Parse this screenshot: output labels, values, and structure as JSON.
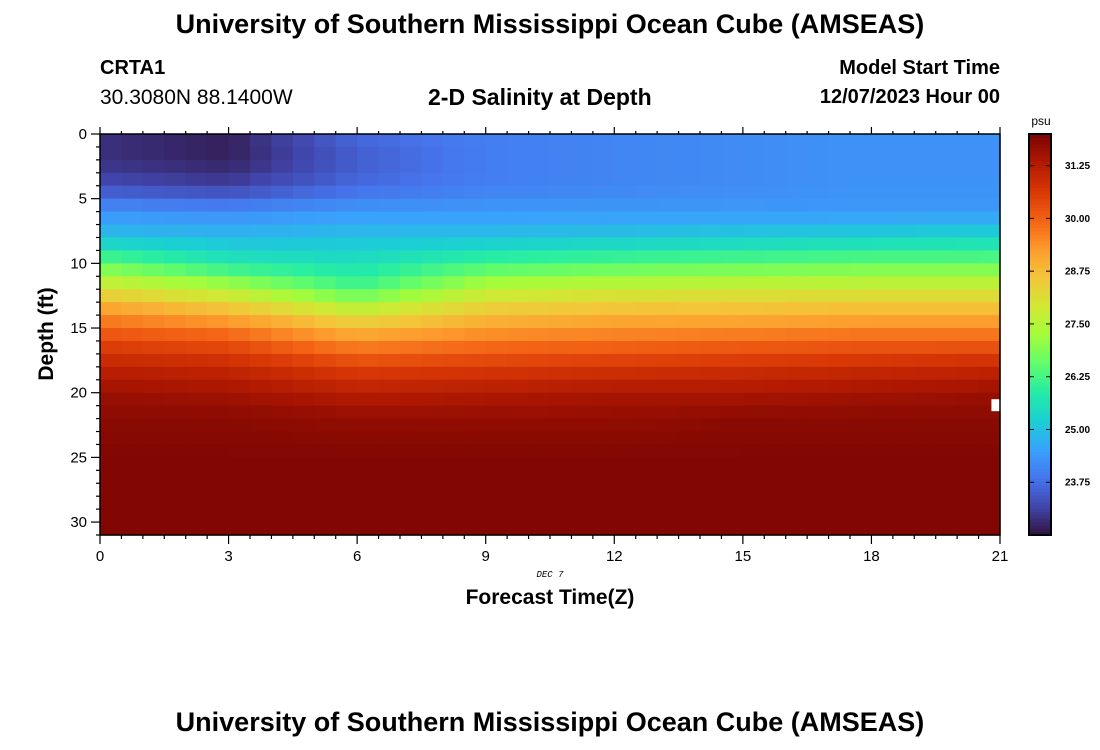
{
  "header": {
    "title": "University of Southern Mississippi Ocean Cube (AMSEAS)",
    "station_id": "CRTA1",
    "station_coords": "30.3080N  88.1400W",
    "plot_title": "2-D Salinity at Depth",
    "start_label": "Model Start Time",
    "start_date": "12/07/2023 Hour 00"
  },
  "footer": {
    "title": "University of Southern Mississippi Ocean Cube (AMSEAS)"
  },
  "chart_data": {
    "type": "heatmap",
    "title": "2-D Salinity at Depth",
    "xlabel": "Forecast Time(Z)",
    "ylabel": "Depth (ft)",
    "date_label": "DEC 7",
    "xlim": [
      0,
      21
    ],
    "ylim": [
      0,
      31
    ],
    "x_ticks": [
      0,
      3,
      6,
      9,
      12,
      15,
      18,
      21
    ],
    "y_ticks": [
      0,
      5,
      10,
      15,
      20,
      25,
      30
    ],
    "colorbar": {
      "unit": "psu",
      "range": [
        22.5,
        32.0
      ],
      "ticks": [
        "31.25",
        "30.00",
        "28.75",
        "27.50",
        "26.25",
        "25.00",
        "23.75"
      ],
      "tick_values": [
        31.25,
        30.0,
        28.75,
        27.5,
        26.25,
        25.0,
        23.75
      ]
    },
    "colors": {
      "colormap": [
        "#30123b",
        "#4145ab",
        "#4675ed",
        "#39a2fc",
        "#1bcfd4",
        "#24eca6",
        "#61fc6c",
        "#a4fc3b",
        "#d1e834",
        "#f3c63a",
        "#fe9b2d",
        "#f36315",
        "#d93806",
        "#b11901",
        "#7a0403"
      ]
    },
    "depth_profiles": {
      "depths_ft": [
        0,
        2,
        4,
        6,
        8,
        10,
        12,
        14,
        16,
        18,
        20,
        22,
        25,
        31
      ],
      "times_h": [
        0,
        3,
        6,
        9,
        12,
        15,
        18,
        21
      ],
      "salinity": [
        [
          22.9,
          22.9,
          23.3,
          24.3,
          25.0,
          26.6,
          28.1,
          29.5,
          30.4,
          31.1,
          31.6,
          31.8,
          31.9,
          31.9
        ],
        [
          22.7,
          22.7,
          23.1,
          24.2,
          24.9,
          25.8,
          27.5,
          29.0,
          30.2,
          31.0,
          31.5,
          31.8,
          31.9,
          31.9
        ],
        [
          23.7,
          23.5,
          23.7,
          24.4,
          25.0,
          25.6,
          26.3,
          28.1,
          29.4,
          30.5,
          31.2,
          31.7,
          31.9,
          31.9
        ],
        [
          24.0,
          24.0,
          24.0,
          24.4,
          25.0,
          26.2,
          27.6,
          28.7,
          29.7,
          30.6,
          31.3,
          31.7,
          31.9,
          31.9
        ],
        [
          24.1,
          24.1,
          24.1,
          24.4,
          25.1,
          26.4,
          27.8,
          28.9,
          29.8,
          30.7,
          31.4,
          31.7,
          31.9,
          31.9
        ],
        [
          24.2,
          24.2,
          24.2,
          24.4,
          25.2,
          26.5,
          27.9,
          28.9,
          29.9,
          30.8,
          31.4,
          31.8,
          31.9,
          31.9
        ],
        [
          24.3,
          24.3,
          24.3,
          24.4,
          25.3,
          26.6,
          27.9,
          29.0,
          30.0,
          30.9,
          31.5,
          31.8,
          31.9,
          31.9
        ],
        [
          24.3,
          24.3,
          24.3,
          24.4,
          25.4,
          26.6,
          27.9,
          29.0,
          30.0,
          31.0,
          31.6,
          31.8,
          31.9,
          31.9
        ]
      ]
    }
  }
}
